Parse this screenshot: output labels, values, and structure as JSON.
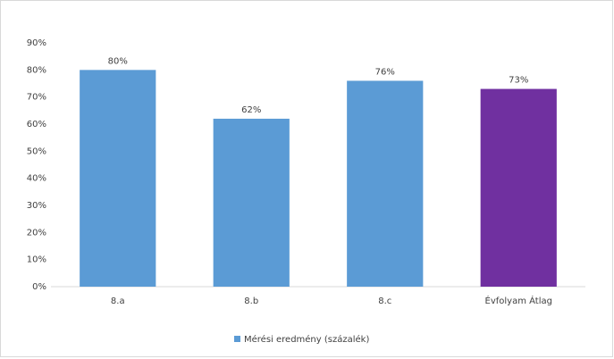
{
  "chart_data": {
    "type": "bar",
    "categories": [
      "8.a",
      "8.b",
      "8.c",
      "Évfolyam Átlag"
    ],
    "series": [
      {
        "name": "Mérési eredmény (százalék)",
        "color": "#5b9bd5",
        "values": [
          80,
          62,
          76,
          73
        ],
        "value_labels": [
          "80%",
          "62%",
          "76%",
          "73%"
        ],
        "colors": [
          "#5b9bd5",
          "#5b9bd5",
          "#5b9bd5",
          "#7030a0"
        ]
      }
    ],
    "ylim": [
      0,
      90
    ],
    "yticks": [
      {
        "value": 0,
        "label": "0%"
      },
      {
        "value": 10,
        "label": "10%"
      },
      {
        "value": 20,
        "label": "20%"
      },
      {
        "value": 30,
        "label": "30%"
      },
      {
        "value": 40,
        "label": "40%"
      },
      {
        "value": 50,
        "label": "50%"
      },
      {
        "value": 60,
        "label": "60%"
      },
      {
        "value": 70,
        "label": "70%"
      },
      {
        "value": 80,
        "label": "80%"
      },
      {
        "value": 90,
        "label": "90%"
      }
    ],
    "grid": false,
    "legend": "bottom"
  }
}
